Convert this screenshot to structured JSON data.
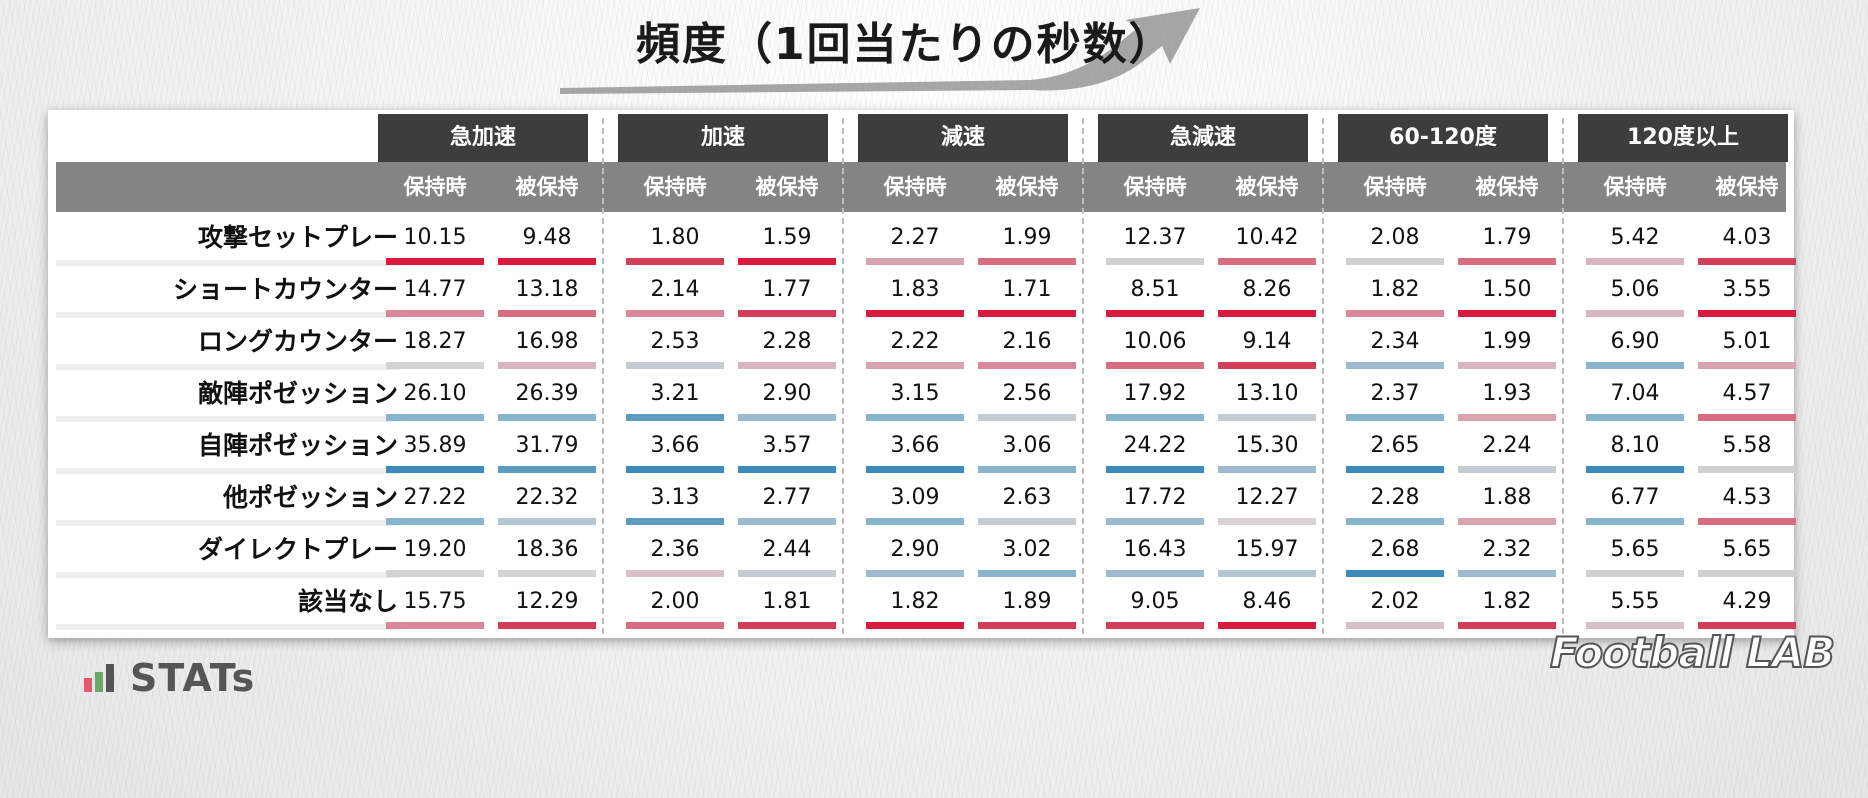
{
  "title": "頻度（1回当たりの秒数）",
  "categories": [
    "急加速",
    "加速",
    "減速",
    "急減速",
    "60-120度",
    "120度以上"
  ],
  "sub_labels": [
    "保持時",
    "被保持"
  ],
  "rows": [
    "攻撃セットプレー",
    "ショートカウンター",
    "ロングカウンター",
    "敵陣ポゼッション",
    "自陣ポゼッション",
    "他ポゼッション",
    "ダイレクトプレー",
    "該当なし"
  ],
  "chart_data": {
    "type": "table",
    "title": "頻度（1回当たりの秒数）",
    "columns": [
      {
        "category": "急加速",
        "side": "保持時"
      },
      {
        "category": "急加速",
        "side": "被保持"
      },
      {
        "category": "加速",
        "side": "保持時"
      },
      {
        "category": "加速",
        "side": "被保持"
      },
      {
        "category": "減速",
        "side": "保持時"
      },
      {
        "category": "減速",
        "side": "被保持"
      },
      {
        "category": "急減速",
        "side": "保持時"
      },
      {
        "category": "急減速",
        "side": "被保持"
      },
      {
        "category": "60-120度",
        "side": "保持時"
      },
      {
        "category": "60-120度",
        "side": "被保持"
      },
      {
        "category": "120度以上",
        "side": "保持時"
      },
      {
        "category": "120度以上",
        "side": "被保持"
      }
    ],
    "values": [
      [
        "10.15",
        "9.48",
        "1.80",
        "1.59",
        "2.27",
        "1.99",
        "12.37",
        "10.42",
        "2.08",
        "1.79",
        "5.42",
        "4.03"
      ],
      [
        "14.77",
        "13.18",
        "2.14",
        "1.77",
        "1.83",
        "1.71",
        "8.51",
        "8.26",
        "1.82",
        "1.50",
        "5.06",
        "3.55"
      ],
      [
        "18.27",
        "16.98",
        "2.53",
        "2.28",
        "2.22",
        "2.16",
        "10.06",
        "9.14",
        "2.34",
        "1.99",
        "6.90",
        "5.01"
      ],
      [
        "26.10",
        "26.39",
        "3.21",
        "2.90",
        "3.15",
        "2.56",
        "17.92",
        "13.10",
        "2.37",
        "1.93",
        "7.04",
        "4.57"
      ],
      [
        "35.89",
        "31.79",
        "3.66",
        "3.57",
        "3.66",
        "3.06",
        "24.22",
        "15.30",
        "2.65",
        "2.24",
        "8.10",
        "5.58"
      ],
      [
        "27.22",
        "22.32",
        "3.13",
        "2.77",
        "3.09",
        "2.63",
        "17.72",
        "12.27",
        "2.28",
        "1.88",
        "6.77",
        "4.53"
      ],
      [
        "19.20",
        "18.36",
        "2.36",
        "2.44",
        "2.90",
        "3.02",
        "16.43",
        "15.97",
        "2.68",
        "2.32",
        "5.65",
        "5.65"
      ],
      [
        "15.75",
        "12.29",
        "2.00",
        "1.81",
        "1.82",
        "1.89",
        "9.05",
        "8.46",
        "2.02",
        "1.82",
        "5.55",
        "4.29"
      ]
    ],
    "bar_colors": [
      [
        "#d81b3c",
        "#d81b3c",
        "#d23e58",
        "#d81b3c",
        "#d9a4b0",
        "#d86d82",
        "#d0d0d0",
        "#d86d82",
        "#cfcfcf",
        "#d86d82",
        "#d9b6bf",
        "#d23e58"
      ],
      [
        "#d8889a",
        "#d86d82",
        "#d8889a",
        "#d23e58",
        "#d81b3c",
        "#d81b3c",
        "#d81b3c",
        "#d81b3c",
        "#d8889a",
        "#d81b3c",
        "#d9b6bf",
        "#d81b3c"
      ],
      [
        "#d4d4d4",
        "#d9b6bf",
        "#c5ccd4",
        "#d9b6bf",
        "#d9a4b0",
        "#d8889a",
        "#d86d82",
        "#d23e58",
        "#9dbad0",
        "#d9b6bf",
        "#8ab3cd",
        "#d9a4b0"
      ],
      [
        "#8ab3cd",
        "#8ab3cd",
        "#5f9cc1",
        "#9dbad0",
        "#8ab3cd",
        "#c5ccd4",
        "#8ab3cd",
        "#c5ccd4",
        "#8ab3cd",
        "#d9a4b0",
        "#8ab3cd",
        "#d86d82"
      ],
      [
        "#3d8bb9",
        "#5f9cc1",
        "#3d8bb9",
        "#3d8bb9",
        "#3d8bb9",
        "#8ab3cd",
        "#3d8bb9",
        "#9dbad0",
        "#3d8bb9",
        "#c5ccd4",
        "#3d8bb9",
        "#d0d0d0"
      ],
      [
        "#8ab3cd",
        "#b3c6d4",
        "#5f9cc1",
        "#9dbad0",
        "#8ab3cd",
        "#c5ccd4",
        "#9dbad0",
        "#d8d2d4",
        "#8ab3cd",
        "#d9a4b0",
        "#8ab3cd",
        "#d86d82"
      ],
      [
        "#d4d4d4",
        "#d4d4d4",
        "#d9c0c8",
        "#c5ccd4",
        "#9dbad0",
        "#8ab3cd",
        "#9dbad0",
        "#b3c6d4",
        "#3d8bb9",
        "#9dbad0",
        "#d0d0d0",
        "#d0d0d0"
      ],
      [
        "#d8889a",
        "#d23e58",
        "#d86d82",
        "#d23e58",
        "#d81b3c",
        "#d23e58",
        "#d23e58",
        "#d81b3c",
        "#d9c0c8",
        "#d23e58",
        "#d9c0c8",
        "#d23e58"
      ]
    ]
  },
  "footer": {
    "stats_logo": "STATs",
    "brand_logo": "Football LAB",
    "stats_icon_colors": [
      "#e05a6b",
      "#6aa86a",
      "#555555"
    ]
  }
}
